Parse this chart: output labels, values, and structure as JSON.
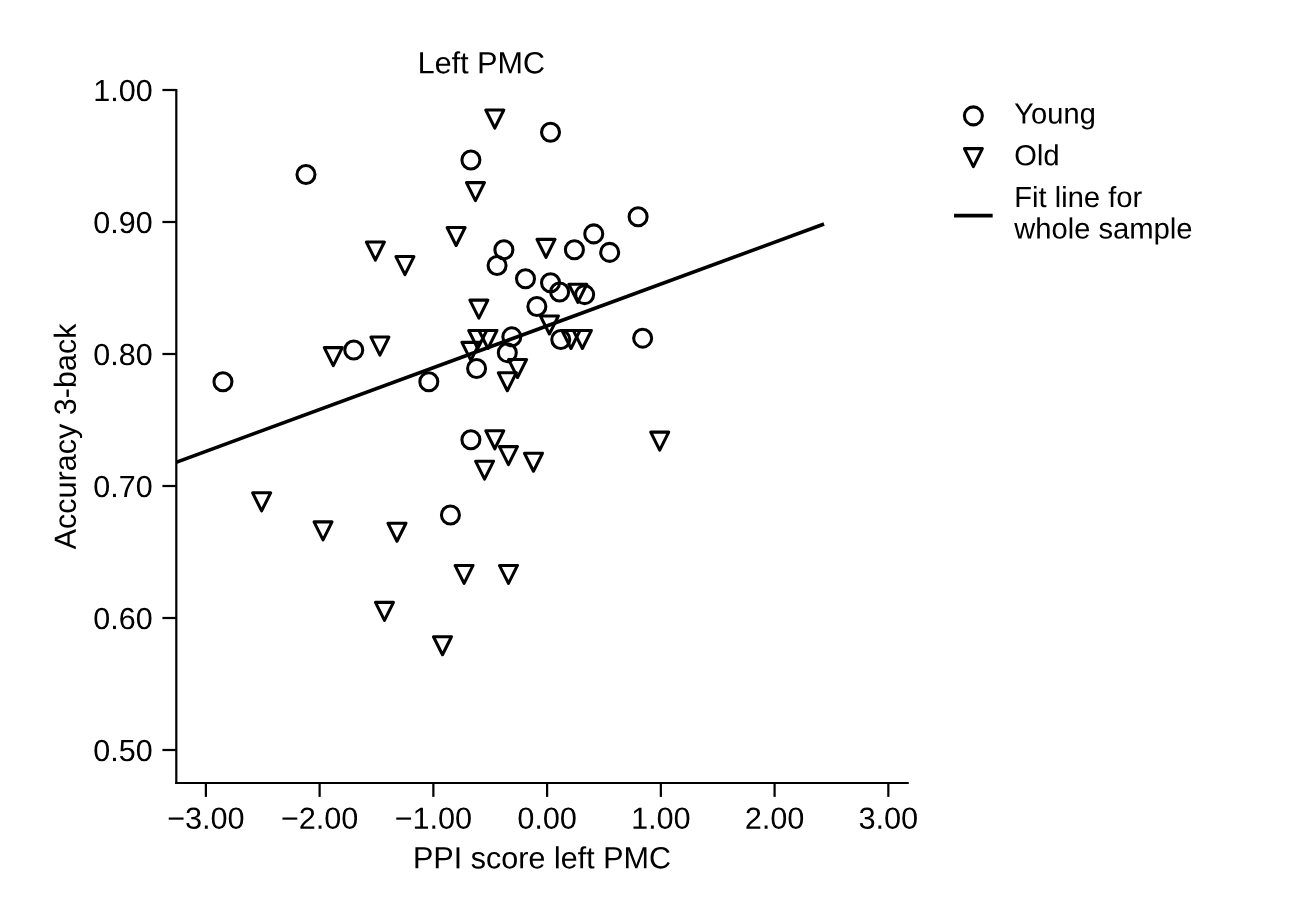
{
  "chart_data": {
    "type": "scatter",
    "title": "Left PMC",
    "xlabel": "PPI score left PMC",
    "ylabel": "Accuracy 3-back",
    "xlim": [
      -3.26,
      3.17
    ],
    "xticks": [
      {
        "value": -3,
        "label": "−3.00"
      },
      {
        "value": -2,
        "label": "−2.00"
      },
      {
        "value": -1,
        "label": "−1.00"
      },
      {
        "value": 0,
        "label": "0.00"
      },
      {
        "value": 1,
        "label": "1.00"
      },
      {
        "value": 2,
        "label": "2.00"
      },
      {
        "value": 3,
        "label": "3.00"
      }
    ],
    "ylim": [
      0.475,
      1.0
    ],
    "yticks": [
      {
        "value": 0.5,
        "label": "0.50"
      },
      {
        "value": 0.6,
        "label": "0.60"
      },
      {
        "value": 0.7,
        "label": "0.70"
      },
      {
        "value": 0.8,
        "label": "0.80"
      },
      {
        "value": 0.9,
        "label": "0.90"
      },
      {
        "value": 1.0,
        "label": "1.00"
      }
    ],
    "grid": false,
    "legend": "right",
    "series": [
      {
        "name": "Young",
        "marker": "circle",
        "color": "#000000",
        "x": [
          -2.85,
          -2.12,
          -1.7,
          -1.04,
          -0.85,
          -0.67,
          -0.67,
          -0.62,
          -0.44,
          -0.38,
          -0.35,
          -0.31,
          -0.19,
          -0.09,
          0.03,
          0.03,
          0.11,
          0.12,
          0.24,
          0.33,
          0.41,
          0.55,
          0.8,
          0.84
        ],
        "values": [
          0.779,
          0.936,
          0.803,
          0.779,
          0.678,
          0.947,
          0.735,
          0.789,
          0.867,
          0.879,
          0.801,
          0.813,
          0.857,
          0.836,
          0.968,
          0.854,
          0.847,
          0.811,
          0.879,
          0.845,
          0.891,
          0.877,
          0.904,
          0.812
        ]
      },
      {
        "name": "Old",
        "marker": "triangle",
        "color": "#000000",
        "x": [
          -2.51,
          -1.97,
          -1.88,
          -1.51,
          -1.47,
          -1.43,
          -1.32,
          -1.25,
          -0.92,
          -0.8,
          -0.73,
          -0.67,
          -0.63,
          -0.61,
          -0.6,
          -0.55,
          -0.52,
          -0.46,
          -0.46,
          -0.35,
          -0.34,
          -0.34,
          -0.26,
          -0.12,
          -0.01,
          0.02,
          0.21,
          0.27,
          0.31,
          0.99
        ],
        "values": [
          0.688,
          0.666,
          0.798,
          0.878,
          0.806,
          0.605,
          0.665,
          0.867,
          0.579,
          0.889,
          0.633,
          0.802,
          0.923,
          0.811,
          0.834,
          0.712,
          0.811,
          0.978,
          0.735,
          0.779,
          0.723,
          0.633,
          0.789,
          0.718,
          0.88,
          0.822,
          0.811,
          0.846,
          0.811,
          0.734
        ]
      },
      {
        "name": "Fit line for\nwhole sample",
        "type": "line",
        "line_style": "solid",
        "marker": "none",
        "color": "#000000",
        "x": [
          -3.26,
          2.42
        ],
        "values": [
          0.718,
          0.898
        ]
      }
    ]
  }
}
